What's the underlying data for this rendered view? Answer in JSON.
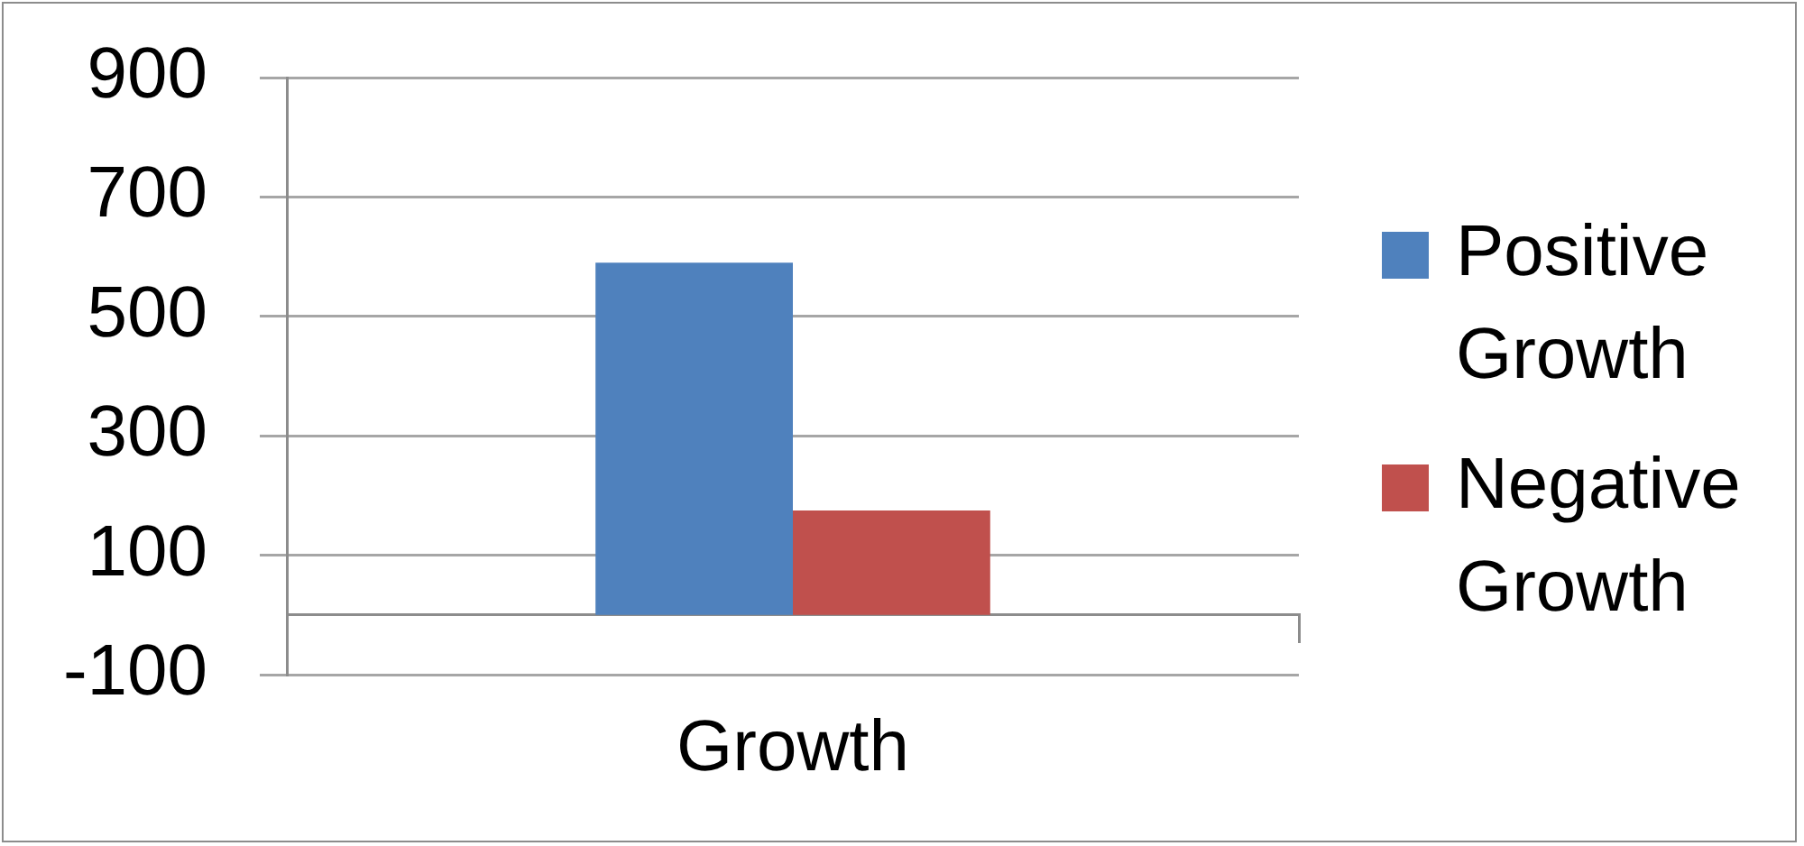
{
  "chart_data": {
    "type": "bar",
    "categories": [
      "Growth"
    ],
    "series": [
      {
        "name": "Positive Growth",
        "color": "#4f81bd",
        "values": [
          590
        ]
      },
      {
        "name": "Negative Growth",
        "color": "#c0504d",
        "values": [
          175
        ]
      }
    ],
    "ylim": [
      -100,
      900
    ],
    "yticks": [
      -100,
      100,
      300,
      500,
      700,
      900
    ],
    "grid": "y",
    "legend": "right"
  }
}
